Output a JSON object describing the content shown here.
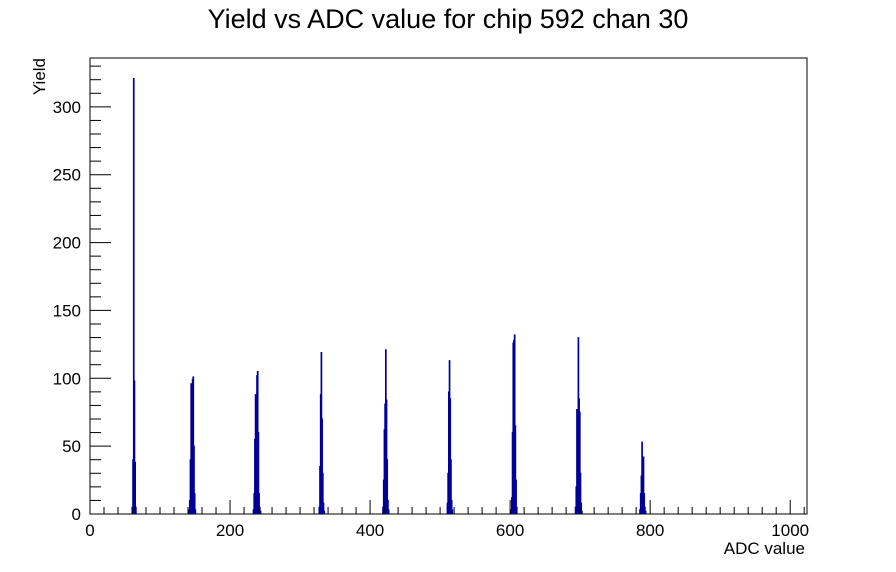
{
  "chart_data": {
    "type": "bar",
    "title": "Yield vs ADC value for chip 592 chan 30",
    "xlabel": "ADC value",
    "ylabel": "Yield",
    "xlim": [
      0,
      1024
    ],
    "ylim": [
      0,
      336
    ],
    "x_ticks": [
      0,
      200,
      400,
      600,
      800,
      1000
    ],
    "y_ticks": [
      0,
      50,
      100,
      150,
      200,
      250,
      300
    ],
    "series_color": "#000099",
    "grid": false,
    "legend": "none",
    "bins": [
      {
        "x": 60,
        "y": 5
      },
      {
        "x": 61,
        "y": 40
      },
      {
        "x": 62,
        "y": 321
      },
      {
        "x": 63,
        "y": 98
      },
      {
        "x": 64,
        "y": 38
      },
      {
        "x": 65,
        "y": 5
      },
      {
        "x": 141,
        "y": 3
      },
      {
        "x": 142,
        "y": 10
      },
      {
        "x": 143,
        "y": 40
      },
      {
        "x": 144,
        "y": 96
      },
      {
        "x": 145,
        "y": 90
      },
      {
        "x": 146,
        "y": 99
      },
      {
        "x": 147,
        "y": 101
      },
      {
        "x": 148,
        "y": 50
      },
      {
        "x": 149,
        "y": 15
      },
      {
        "x": 150,
        "y": 3
      },
      {
        "x": 233,
        "y": 3
      },
      {
        "x": 234,
        "y": 15
      },
      {
        "x": 235,
        "y": 55
      },
      {
        "x": 236,
        "y": 88
      },
      {
        "x": 237,
        "y": 46
      },
      {
        "x": 238,
        "y": 102
      },
      {
        "x": 239,
        "y": 105
      },
      {
        "x": 240,
        "y": 60
      },
      {
        "x": 241,
        "y": 15
      },
      {
        "x": 242,
        "y": 5
      },
      {
        "x": 243,
        "y": 2
      },
      {
        "x": 327,
        "y": 5
      },
      {
        "x": 328,
        "y": 35
      },
      {
        "x": 329,
        "y": 88
      },
      {
        "x": 330,
        "y": 119
      },
      {
        "x": 331,
        "y": 70
      },
      {
        "x": 332,
        "y": 30
      },
      {
        "x": 333,
        "y": 8
      },
      {
        "x": 334,
        "y": 2
      },
      {
        "x": 418,
        "y": 5
      },
      {
        "x": 419,
        "y": 25
      },
      {
        "x": 420,
        "y": 62
      },
      {
        "x": 421,
        "y": 81
      },
      {
        "x": 422,
        "y": 121
      },
      {
        "x": 423,
        "y": 84
      },
      {
        "x": 424,
        "y": 40
      },
      {
        "x": 425,
        "y": 10
      },
      {
        "x": 426,
        "y": 3
      },
      {
        "x": 510,
        "y": 8
      },
      {
        "x": 511,
        "y": 30
      },
      {
        "x": 512,
        "y": 90
      },
      {
        "x": 513,
        "y": 113
      },
      {
        "x": 514,
        "y": 85
      },
      {
        "x": 515,
        "y": 40
      },
      {
        "x": 516,
        "y": 10
      },
      {
        "x": 517,
        "y": 3
      },
      {
        "x": 601,
        "y": 3
      },
      {
        "x": 602,
        "y": 12
      },
      {
        "x": 603,
        "y": 60
      },
      {
        "x": 604,
        "y": 126
      },
      {
        "x": 605,
        "y": 128
      },
      {
        "x": 606,
        "y": 132
      },
      {
        "x": 607,
        "y": 65
      },
      {
        "x": 608,
        "y": 25
      },
      {
        "x": 609,
        "y": 5
      },
      {
        "x": 693,
        "y": 5
      },
      {
        "x": 694,
        "y": 20
      },
      {
        "x": 695,
        "y": 77
      },
      {
        "x": 696,
        "y": 60
      },
      {
        "x": 697,
        "y": 130
      },
      {
        "x": 698,
        "y": 85
      },
      {
        "x": 699,
        "y": 75
      },
      {
        "x": 700,
        "y": 30
      },
      {
        "x": 701,
        "y": 8
      },
      {
        "x": 702,
        "y": 2
      },
      {
        "x": 785,
        "y": 3
      },
      {
        "x": 786,
        "y": 15
      },
      {
        "x": 787,
        "y": 28
      },
      {
        "x": 788,
        "y": 53
      },
      {
        "x": 789,
        "y": 30
      },
      {
        "x": 790,
        "y": 42
      },
      {
        "x": 791,
        "y": 15
      },
      {
        "x": 792,
        "y": 5
      },
      {
        "x": 793,
        "y": 2
      }
    ]
  }
}
